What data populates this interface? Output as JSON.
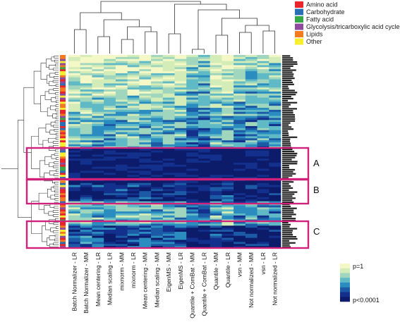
{
  "chart_data": {
    "type": "heatmap",
    "columns": [
      "Batch Normalizer - LR",
      "Batch Normalizer - MM",
      "Mean centering - LR",
      "Median scaling - LR",
      "mixnorm - MM",
      "mixnorm - LR",
      "Mean centering - MM",
      "Median scaling - MM",
      "EigenMS - MM",
      "EigenMS - LR",
      "Quantile + ComBat - MM",
      "Quantile + ComBat - LR",
      "Quantile - MM",
      "Quantile - LR",
      "vsn - MM",
      "Not normalized - MM",
      "vsn - LR",
      "Not normalized - LR"
    ],
    "category_legend": [
      {
        "label": "Amino acid",
        "color": "#e8252b"
      },
      {
        "label": "Carbohydrate",
        "color": "#2a6fb5"
      },
      {
        "label": "Fatty acid",
        "color": "#35a847"
      },
      {
        "label": "Glycolysis/tricarboxylic acid cycle",
        "color": "#8e4b9e"
      },
      {
        "label": "Lipids",
        "color": "#f47a20"
      },
      {
        "label": "Other",
        "color": "#f6ee2e"
      }
    ],
    "color_scale": {
      "top_label": "p=1",
      "bottom_label": "p<0.0001",
      "colors": [
        "#f4f8c6",
        "#d3ecb8",
        "#9fd6bd",
        "#5fbac6",
        "#2b8cbf",
        "#1d5aa6",
        "#12308c",
        "#0c1c6a"
      ]
    },
    "cluster_boxes": [
      {
        "label": "A",
        "color": "#d0217b"
      },
      {
        "label": "B",
        "color": "#d0217b"
      },
      {
        "label": "C",
        "color": "#d0217b"
      }
    ],
    "row_count": 95
  }
}
